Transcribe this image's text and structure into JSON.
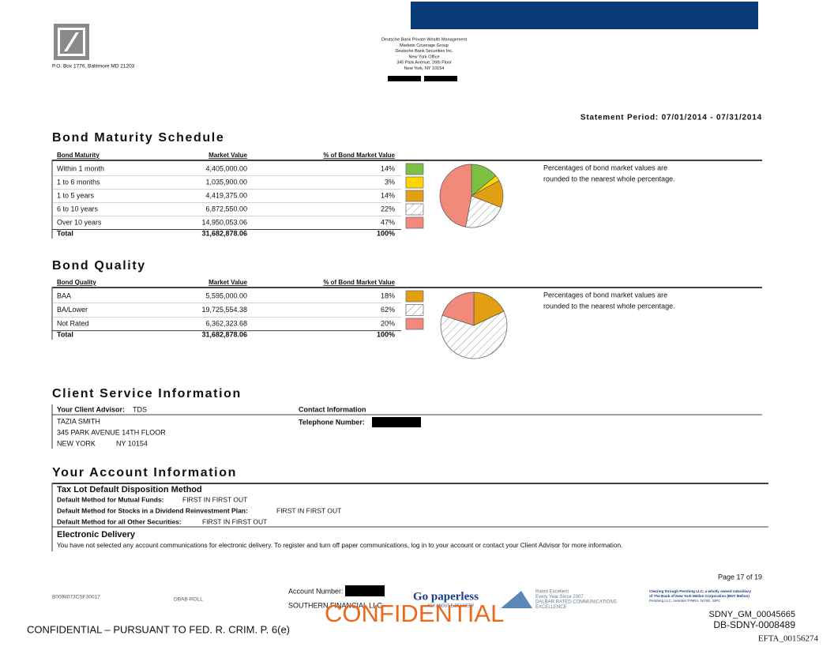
{
  "header": {
    "address": "P.O. Box 1776, Baltimore MD 21203",
    "bank_lines": [
      "Deutsche Bank Private Wealth Management",
      "Markets Coverage Group",
      "Deutsche Bank Securities Inc.",
      "New York Office",
      "345 Park Avenue, 26th Floor",
      "New York, NY 10154"
    ],
    "statement_period": "Statement Period: 07/01/2014 - 07/31/2014"
  },
  "bond_maturity": {
    "title": "Bond Maturity Schedule",
    "columns": [
      "Bond Maturity",
      "Market Value",
      "% of Bond Market Value"
    ],
    "rows": [
      {
        "label": "Within 1 month",
        "market_value": "4,405,000.00"
      },
      {
        "label": "1 to 6 months",
        "market_value": "1,035,900.00"
      },
      {
        "label": "1 to 5 years",
        "market_value": "4,419,375.00"
      },
      {
        "label": "6 to 10 years",
        "market_value": "6,872,550.00"
      },
      {
        "label": "Over 10 years",
        "market_value": "14,950,053.06"
      }
    ],
    "percents": [
      14,
      3,
      14,
      22,
      47
    ],
    "percent_labels": [
      "14%",
      "3%",
      "14%",
      "22%",
      "47%"
    ],
    "colors": [
      "#7cc242",
      "#ffd700",
      "#e1a012",
      "hatch",
      "#f28a7c"
    ],
    "total": {
      "label": "Total",
      "market_value": "31,682,878.06",
      "percent": "100%"
    },
    "note": [
      "Percentages of bond market values are",
      "rounded to the nearest whole percentage."
    ]
  },
  "bond_quality": {
    "title": "Bond Quality",
    "columns": [
      "Bond Quality",
      "Market Value",
      "% of Bond Market Value"
    ],
    "rows": [
      {
        "label": "BAA",
        "market_value": "5,595,000.00"
      },
      {
        "label": "BA/Lower",
        "market_value": "19,725,554.38"
      },
      {
        "label": "Not Rated",
        "market_value": "6,362,323.68"
      }
    ],
    "percents": [
      18,
      62,
      20
    ],
    "percent_labels": [
      "18%",
      "62%",
      "20%"
    ],
    "colors": [
      "#e1a012",
      "hatch",
      "#f28a7c"
    ],
    "total": {
      "label": "Total",
      "market_value": "31,682,878.06",
      "percent": "100%"
    },
    "note": [
      "Percentages of bond market values are",
      "rounded to the nearest whole percentage."
    ]
  },
  "client_service": {
    "title": "Client Service Information",
    "advisor_label": "Your Client Advisor:",
    "advisor": "TDS",
    "contact_label": "Contact Information",
    "phone_label": "Telephone Number:",
    "name": "TAZIA SMITH",
    "street": "345 PARK AVENUE 14TH FLOOR",
    "city": "NEW YORK",
    "state_zip": "NY 10154"
  },
  "account_info": {
    "title": "Your Account Information",
    "tax_lot_title": "Tax Lot Default Disposition Method",
    "methods": [
      {
        "label": "Default Method for Mutual Funds:",
        "value": "FIRST IN FIRST OUT"
      },
      {
        "label": "Default Method for Stocks in a Dividend Reinvestment Plan:",
        "value": "FIRST IN FIRST OUT"
      },
      {
        "label": "Default Method for all Other Securities:",
        "value": "FIRST IN FIRST OUT"
      }
    ],
    "electronic_title": "Electronic Delivery",
    "electronic_text": "You have not selected any account communications for electronic delivery. To register and turn off paper communications, log in to your account or contact your Client Advisor for more information."
  },
  "footer": {
    "page": "Page 17 of 19",
    "code": "B0098073CSF30017",
    "roll": "DBAB-ROLL",
    "account_label": "Account Number:",
    "account_name": "SOUTHERN FINANCIAL LLC",
    "paperless": "Go paperless",
    "paperless_sub": "ASK ABOUT E-DELIVERY",
    "dalbar": [
      "Rated Excellent",
      "Every Year Since 2007",
      "DALBAR RATED COMMUNICATIONS",
      "EXCELLENCE"
    ],
    "pershing": [
      "Clearing through Pershing LLC, a wholly owned subsidiary",
      "of The Bank of New York Mellon Corporation (BNY Mellon)",
      "Pershing LLC, member FINRA, NYSE, SIPC"
    ],
    "confidential_notice": "CONFIDENTIAL – PURSUANT TO FED. R. CRIM. P. 6(e)",
    "confidential": "CONFIDENTIAL",
    "ids": [
      "SDNY_GM_00045665",
      "DB-SDNY-0008489"
    ],
    "efta": "EFTA_00156274"
  }
}
